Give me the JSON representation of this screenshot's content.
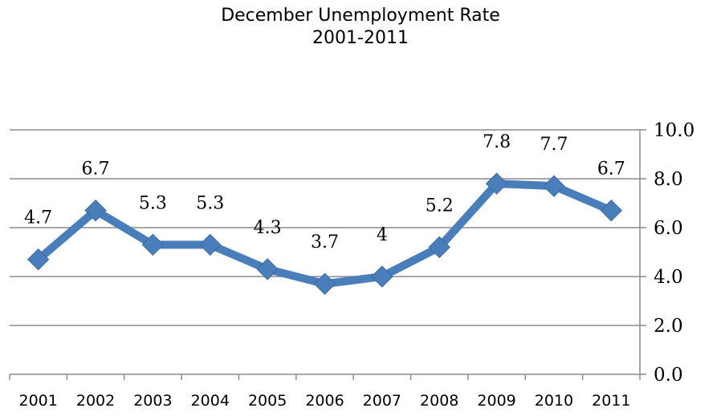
{
  "chart_data": {
    "type": "line",
    "title": "December Unemployment Rate",
    "subtitle": "2001-2011",
    "xlabel": "",
    "ylabel": "",
    "categories": [
      "2001",
      "2002",
      "2003",
      "2004",
      "2005",
      "2006",
      "2007",
      "2008",
      "2009",
      "2010",
      "2011"
    ],
    "series": [
      {
        "values": [
          4.7,
          6.7,
          5.3,
          5.3,
          4.3,
          3.7,
          4,
          5.2,
          7.8,
          7.7,
          6.7
        ],
        "data_labels": [
          "4.7",
          "6.7",
          "5.3",
          "5.3",
          "4.3",
          "3.7",
          "4",
          "5.2",
          "7.8",
          "7.7",
          "6.7"
        ]
      }
    ],
    "ylim": [
      0,
      10
    ],
    "yticks": [
      "0.0",
      "2.0",
      "4.0",
      "6.0",
      "8.0",
      "10.0"
    ],
    "y_axis_position": "right",
    "grid": true,
    "line_color": "#4a7ebb",
    "grid_color": "#8c8c8c"
  }
}
